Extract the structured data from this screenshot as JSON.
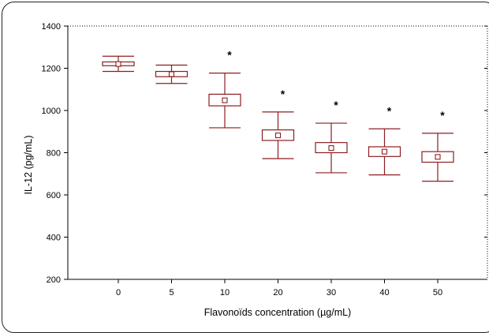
{
  "chart_data": {
    "type": "box",
    "title": "",
    "xlabel": "Flavonoïds concentration (µg/mL)",
    "ylabel": "IL-12 (pg/mL)",
    "ylim": [
      200,
      1400
    ],
    "yticks": [
      200,
      400,
      600,
      800,
      1000,
      1200,
      1400
    ],
    "categories": [
      "0",
      "5",
      "10",
      "20",
      "30",
      "40",
      "50"
    ],
    "series": [
      {
        "mean": [
          1220,
          1172,
          1048,
          882,
          822,
          805,
          780
        ],
        "box_low": [
          1212,
          1160,
          1022,
          858,
          800,
          782,
          755
        ],
        "box_high": [
          1230,
          1185,
          1077,
          908,
          848,
          828,
          805
        ],
        "whisker_low": [
          1185,
          1128,
          918,
          772,
          705,
          695,
          665
        ],
        "whisker_high": [
          1257,
          1215,
          1177,
          993,
          940,
          913,
          892
        ]
      }
    ],
    "significance": [
      "",
      "",
      "*",
      "*",
      "*",
      "*",
      "*"
    ],
    "grid": false,
    "colors": {
      "box": "#8b1f22",
      "axis": "#000000"
    }
  }
}
